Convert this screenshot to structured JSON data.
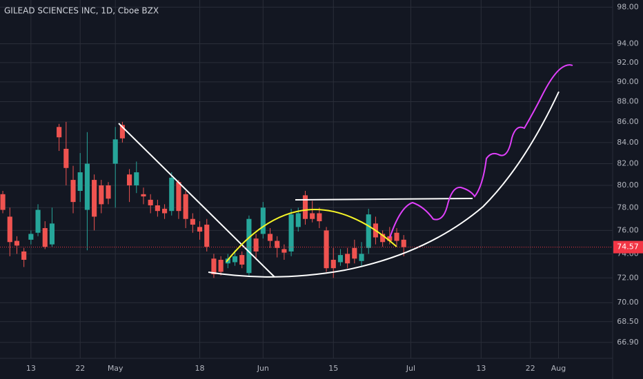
{
  "chart_data": {
    "type": "candlestick",
    "title": "GILEAD SCIENCES INC, 1D, Cboe BZX",
    "log_scale": true,
    "grid": true,
    "up_color": "#26a69a",
    "down_color": "#ef5350",
    "last_price": 74.57,
    "last_price_color": "#f23645",
    "x": [
      -1,
      0,
      1,
      2,
      3,
      4,
      5,
      6,
      7,
      8,
      9,
      10,
      11,
      12,
      13,
      14,
      15,
      16,
      17,
      18,
      19,
      20,
      21,
      22,
      23,
      24,
      25,
      26,
      27,
      28,
      29,
      30,
      31,
      32,
      33,
      34,
      35,
      36,
      37,
      38,
      39,
      40,
      41,
      42,
      43,
      44,
      45,
      46,
      47,
      48,
      49,
      50,
      51,
      52,
      53,
      54,
      55,
      56
    ],
    "open": [
      79.2,
      77.2,
      75.1,
      74.2,
      75.2,
      75.8,
      76.2,
      74.8,
      85.5,
      83.4,
      80.5,
      79.5,
      77.8,
      80.5,
      80.0,
      80.0,
      82.0,
      85.7,
      81.0,
      80.0,
      79.2,
      78.7,
      78.2,
      77.9,
      77.7,
      80.3,
      79.2,
      77.0,
      76.3,
      76.5,
      73.6,
      73.5,
      73.2,
      73.3,
      73.9,
      72.4,
      75.3,
      75.7,
      75.7,
      75.1,
      74.4,
      74.2,
      76.3,
      79.1,
      77.5,
      77.5,
      76.0,
      73.5,
      73.3,
      74.0,
      74.5,
      73.4,
      74.5,
      76.6,
      75.7,
      75.5,
      75.8,
      75.2
    ],
    "high": [
      79.5,
      78.0,
      75.5,
      74.5,
      76.0,
      78.3,
      76.8,
      78.0,
      85.8,
      86.0,
      81.8,
      83.0,
      85.0,
      81.0,
      80.5,
      80.3,
      85.5,
      86.0,
      81.5,
      82.2,
      79.8,
      79.2,
      78.7,
      78.3,
      81.2,
      80.5,
      79.5,
      77.5,
      76.8,
      77.0,
      74.0,
      73.8,
      74.0,
      74.3,
      74.2,
      77.3,
      75.7,
      78.5,
      76.2,
      75.5,
      74.8,
      77.9,
      78.0,
      79.5,
      78.6,
      78.0,
      76.3,
      74.5,
      74.4,
      74.5,
      75.2,
      75.0,
      77.9,
      77.2,
      76.0,
      76.3,
      76.2,
      75.6
    ],
    "low": [
      77.5,
      73.8,
      74.0,
      72.9,
      74.8,
      75.5,
      74.4,
      74.6,
      83.2,
      80.0,
      77.5,
      78.5,
      74.3,
      76.0,
      77.5,
      78.3,
      78.0,
      84.0,
      78.5,
      79.3,
      78.3,
      77.5,
      77.2,
      77.0,
      77.3,
      77.0,
      76.2,
      75.8,
      75.2,
      74.2,
      72.0,
      72.2,
      72.8,
      73.0,
      72.8,
      72.2,
      73.5,
      75.3,
      74.5,
      73.7,
      73.5,
      73.8,
      75.9,
      76.5,
      76.7,
      76.2,
      72.5,
      72.0,
      73.0,
      72.8,
      73.2,
      73.0,
      74.0,
      74.8,
      74.6,
      74.8,
      74.7,
      73.8
    ],
    "close": [
      77.8,
      75.0,
      74.7,
      73.5,
      75.7,
      77.8,
      74.6,
      76.6,
      84.5,
      81.6,
      78.5,
      81.2,
      82.0,
      77.2,
      78.3,
      78.8,
      84.3,
      84.4,
      80.0,
      81.2,
      79.0,
      78.2,
      77.7,
      77.5,
      80.7,
      77.7,
      77.0,
      76.5,
      75.9,
      74.6,
      72.3,
      72.5,
      73.6,
      73.8,
      73.1,
      77.0,
      74.2,
      78.0,
      75.1,
      74.5,
      74.1,
      77.4,
      77.5,
      77.0,
      77.0,
      76.8,
      72.8,
      72.8,
      73.9,
      73.2,
      73.6,
      74.0,
      77.4,
      75.4,
      75.0,
      75.1,
      75.1,
      74.57
    ],
    "xlim": [
      -1.4,
      85.7
    ],
    "xticks": [
      {
        "value": 3,
        "label": "13"
      },
      {
        "value": 10,
        "label": "22"
      },
      {
        "value": 15,
        "label": "May"
      },
      {
        "value": 27,
        "label": "18"
      },
      {
        "value": 36,
        "label": "Jun"
      },
      {
        "value": 46,
        "label": "15"
      },
      {
        "value": 57,
        "label": "Jul"
      },
      {
        "value": 67,
        "label": "13"
      },
      {
        "value": 74,
        "label": "22"
      },
      {
        "value": 78,
        "label": "Aug"
      }
    ],
    "ylim": [
      65.7,
      98.8
    ],
    "yticks": [
      {
        "value": 98,
        "label": "98.00"
      },
      {
        "value": 94,
        "label": "94.00"
      },
      {
        "value": 92,
        "label": "92.00"
      },
      {
        "value": 90,
        "label": "90.00"
      },
      {
        "value": 88,
        "label": "88.00"
      },
      {
        "value": 86,
        "label": "86.00"
      },
      {
        "value": 84,
        "label": "84.00"
      },
      {
        "value": 82,
        "label": "82.00"
      },
      {
        "value": 80,
        "label": "80.00"
      },
      {
        "value": 78,
        "label": "78.00"
      },
      {
        "value": 76,
        "label": "76.00"
      },
      {
        "value": 74,
        "label": "74.00"
      },
      {
        "value": 72,
        "label": "72.00"
      },
      {
        "value": 70,
        "label": "70.00"
      },
      {
        "value": 68.5,
        "label": "68.50"
      },
      {
        "value": 66.9,
        "label": "66.90"
      }
    ]
  }
}
